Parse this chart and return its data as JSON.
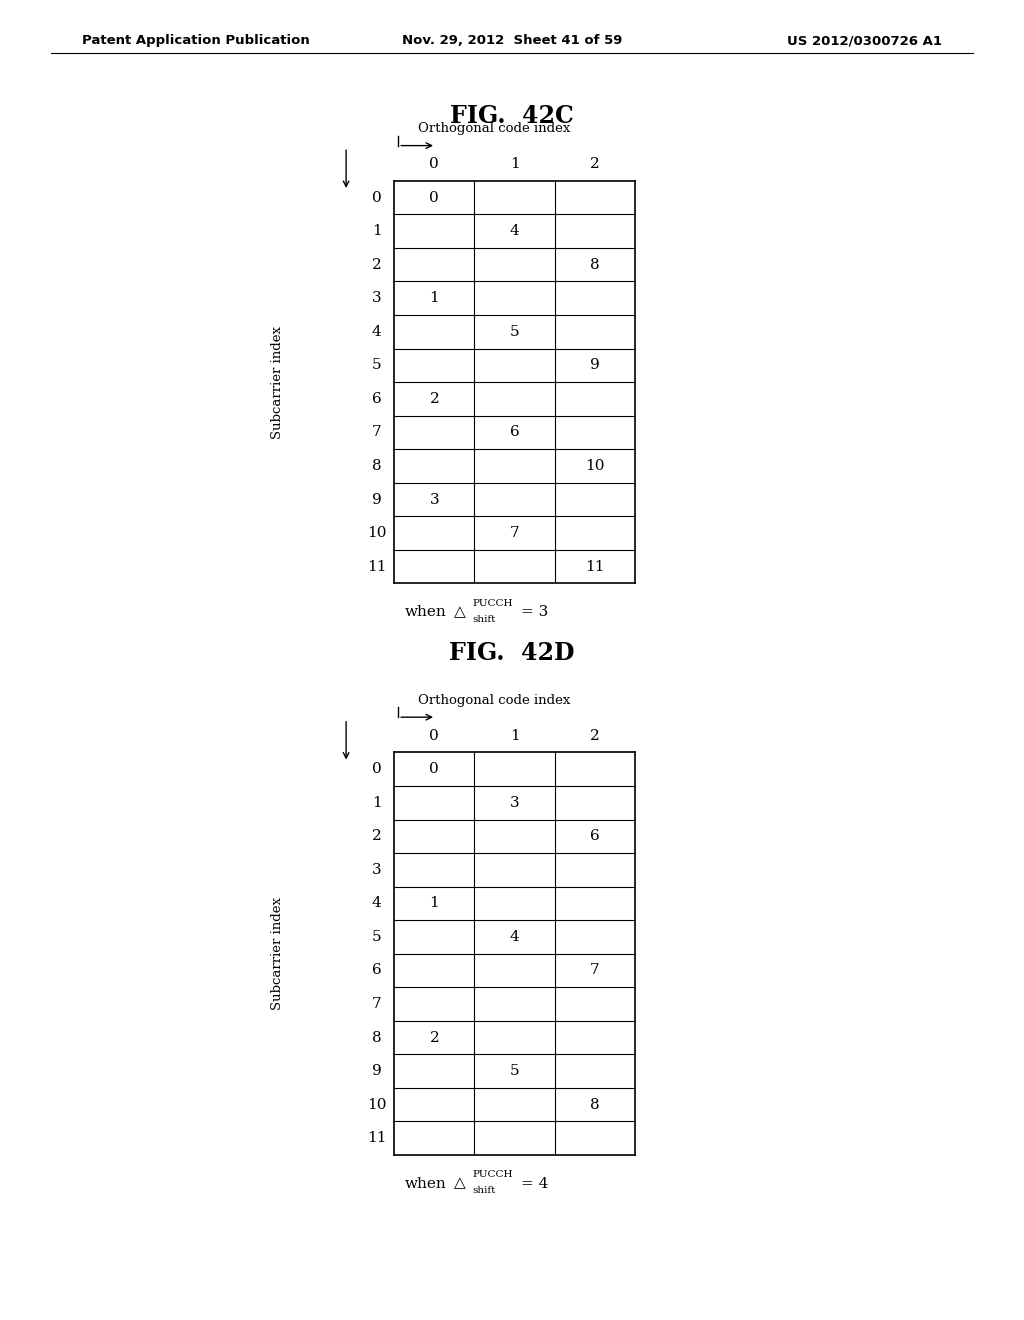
{
  "header_text": "Patent Application Publication",
  "date_text": "Nov. 29, 2012  Sheet 41 of 59",
  "patent_text": "US 2012/0300726 A1",
  "fig42c_title": "FIG.  42C",
  "fig42d_title": "FIG.  42D",
  "col_label": "Orthogonal code index",
  "row_label": "Subcarrier index",
  "col_headers": [
    "0",
    "1",
    "2"
  ],
  "row_headers": [
    "0",
    "1",
    "2",
    "3",
    "4",
    "5",
    "6",
    "7",
    "8",
    "9",
    "10",
    "11"
  ],
  "table42c": [
    [
      "0",
      "",
      ""
    ],
    [
      "",
      "4",
      ""
    ],
    [
      "",
      "",
      "8"
    ],
    [
      "1",
      "",
      ""
    ],
    [
      "",
      "5",
      ""
    ],
    [
      "",
      "",
      "9"
    ],
    [
      "2",
      "",
      ""
    ],
    [
      "",
      "6",
      ""
    ],
    [
      "",
      "",
      "10"
    ],
    [
      "3",
      "",
      ""
    ],
    [
      "",
      "7",
      ""
    ],
    [
      "",
      "",
      "11"
    ]
  ],
  "table42d": [
    [
      "0",
      "",
      ""
    ],
    [
      "",
      "3",
      ""
    ],
    [
      "",
      "",
      "6"
    ],
    [
      "",
      "",
      ""
    ],
    [
      "1",
      "",
      ""
    ],
    [
      "",
      "4",
      ""
    ],
    [
      "",
      "",
      "7"
    ],
    [
      "",
      "",
      ""
    ],
    [
      "2",
      "",
      ""
    ],
    [
      "",
      "5",
      ""
    ],
    [
      "",
      "",
      "8"
    ],
    [
      "",
      "",
      ""
    ]
  ],
  "shift_val_c": "3",
  "shift_val_d": "4",
  "bg_color": "#ffffff",
  "text_color": "#000000",
  "line_color": "#000000",
  "header_fontsize": 9.5,
  "title_fontsize": 17,
  "cell_fontsize": 11,
  "label_fontsize": 9.5
}
